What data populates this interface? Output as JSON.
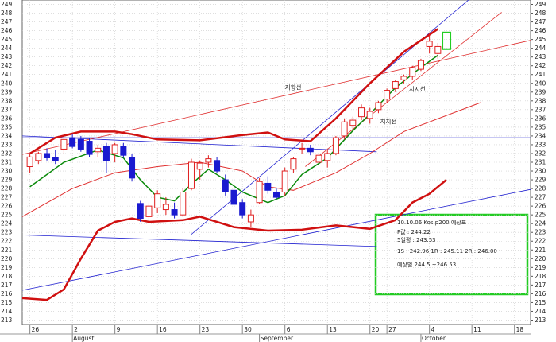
{
  "chart_data": {
    "type": "candlestick",
    "xlim": [
      -0.9,
      58.9
    ],
    "ylim": [
      212.5,
      249.5
    ],
    "yticks": [
      213,
      214,
      215,
      216,
      217,
      218,
      219,
      220,
      221,
      222,
      223,
      224,
      225,
      226,
      227,
      228,
      229,
      230,
      231,
      232,
      233,
      234,
      235,
      236,
      237,
      238,
      239,
      240,
      241,
      242,
      243,
      244,
      245,
      246,
      247,
      248,
      249
    ],
    "xticks": [
      {
        "value": 0,
        "label": "26"
      },
      {
        "value": 5,
        "label": "2"
      },
      {
        "value": 10,
        "label": "9"
      },
      {
        "value": 15,
        "label": "16"
      },
      {
        "value": 20,
        "label": "23"
      },
      {
        "value": 25,
        "label": "30"
      },
      {
        "value": 30,
        "label": "6"
      },
      {
        "value": 35,
        "label": "13"
      },
      {
        "value": 40,
        "label": "20"
      },
      {
        "value": 42,
        "label": "27"
      },
      {
        "value": 47,
        "label": "4"
      },
      {
        "value": 52,
        "label": "11"
      },
      {
        "value": 57,
        "label": "18"
      }
    ],
    "month_ticks": [
      {
        "value": 5,
        "label": "August"
      },
      {
        "value": 27,
        "label": "September"
      },
      {
        "value": 46,
        "label": "October"
      }
    ],
    "grid": true,
    "up_color": "#e02020",
    "down_color": "#1a1ad0",
    "candles": {
      "x": [
        0,
        1,
        2,
        3,
        4,
        5,
        6,
        7,
        8,
        9,
        10,
        11,
        12,
        13,
        14,
        15,
        16,
        17,
        18,
        19,
        20,
        21,
        22,
        23,
        24,
        25,
        26,
        27,
        28,
        29,
        30,
        31,
        32,
        33,
        34,
        35,
        36,
        37,
        38,
        39,
        40,
        41,
        42,
        43,
        44,
        45,
        46,
        47,
        48
      ],
      "open": [
        230.5,
        231.2,
        232.0,
        231.5,
        232.5,
        233.8,
        233.6,
        233.4,
        232.2,
        232.8,
        232.0,
        232.8,
        231.5,
        226.3,
        224.8,
        225.8,
        225.6,
        225.6,
        225.0,
        228.0,
        230.2,
        231.0,
        231.2,
        229.0,
        227.8,
        226.4,
        224.2,
        226.4,
        228.6,
        227.6,
        227.6,
        230.2,
        232.6,
        232.6,
        231.0,
        231.2,
        232.0,
        234.0,
        235.2,
        236.2,
        236.0,
        237.0,
        238.2,
        239.4,
        240.4,
        240.8,
        241.6,
        244.2,
        243.4
      ],
      "high": [
        232.0,
        232.2,
        232.6,
        232.4,
        234.0,
        234.2,
        234.0,
        233.8,
        233.0,
        233.2,
        233.2,
        233.2,
        232.0,
        226.6,
        226.4,
        227.8,
        227.0,
        226.4,
        228.0,
        231.4,
        231.2,
        231.8,
        231.6,
        229.6,
        228.2,
        226.8,
        225.6,
        229.2,
        229.4,
        228.0,
        230.4,
        231.6,
        233.2,
        233.0,
        232.2,
        232.4,
        234.0,
        236.0,
        236.2,
        237.6,
        237.2,
        238.0,
        239.4,
        240.4,
        241.0,
        242.0,
        242.8,
        245.8,
        244.6
      ],
      "low": [
        229.8,
        230.8,
        231.2,
        230.8,
        232.0,
        232.6,
        232.2,
        231.6,
        231.6,
        229.8,
        231.0,
        231.5,
        228.8,
        224.2,
        224.0,
        225.2,
        225.0,
        224.6,
        224.8,
        227.8,
        229.0,
        230.4,
        229.8,
        227.2,
        225.8,
        224.6,
        223.6,
        226.2,
        227.4,
        226.8,
        227.2,
        229.8,
        232.0,
        231.8,
        229.8,
        230.4,
        231.8,
        233.6,
        234.6,
        235.8,
        235.4,
        236.6,
        237.8,
        239.0,
        240.0,
        240.4,
        241.4,
        243.4,
        242.8
      ],
      "close": [
        231.6,
        232.0,
        231.5,
        231.2,
        233.6,
        232.8,
        232.5,
        231.9,
        232.6,
        231.2,
        233.0,
        231.8,
        229.2,
        224.6,
        226.0,
        227.4,
        226.2,
        225.0,
        227.6,
        231.0,
        230.9,
        231.4,
        230.0,
        227.6,
        226.2,
        225.0,
        225.0,
        228.8,
        227.8,
        227.0,
        230.0,
        231.4,
        232.6,
        232.2,
        231.8,
        232.0,
        233.8,
        235.6,
        235.8,
        237.2,
        236.8,
        237.8,
        239.2,
        240.2,
        240.8,
        241.8,
        242.6,
        244.8,
        244.2
      ]
    },
    "indicators": [
      {
        "color": "#d01010",
        "width": 2.5,
        "x": [
          0,
          3,
          6,
          10,
          12,
          15,
          20,
          25,
          28,
          30,
          33,
          36,
          40,
          44,
          48
        ],
        "values": [
          232.0,
          233.8,
          234.5,
          234.5,
          234.2,
          233.6,
          233.5,
          234.1,
          234.4,
          233.6,
          233.4,
          236.0,
          240.0,
          243.6,
          246.2
        ]
      },
      {
        "color": "#d01010",
        "width": 2.5,
        "x": [
          -0.9,
          2,
          4,
          6,
          8,
          10,
          12,
          14,
          18,
          20,
          24,
          28,
          32,
          36,
          40,
          43,
          45,
          47,
          49
        ],
        "values": [
          215.5,
          215.3,
          216.5,
          220.0,
          223.2,
          224.2,
          224.6,
          224.2,
          224.4,
          224.8,
          223.6,
          223.2,
          223.3,
          223.8,
          223.4,
          224.4,
          226.4,
          227.4,
          229.0
        ]
      },
      {
        "color": "#e03030",
        "width": 1,
        "x": [
          -0.9,
          5,
          10,
          15,
          20,
          25,
          28,
          31,
          36,
          40,
          44,
          53
        ],
        "values": [
          224.8,
          228.0,
          229.8,
          230.5,
          231.0,
          230.0,
          228.2,
          227.8,
          229.8,
          232.0,
          234.5,
          237.8
        ]
      },
      {
        "color": "#0a8a0a",
        "width": 1.5,
        "x": [
          0,
          4,
          8,
          11,
          13,
          15,
          17,
          19,
          21,
          23,
          25,
          28,
          30,
          32,
          35,
          38,
          40,
          43,
          46,
          48
        ],
        "values": [
          228.2,
          231.0,
          232.4,
          231.5,
          229.0,
          227.0,
          226.6,
          228.5,
          230.2,
          229.0,
          227.6,
          226.4,
          227.2,
          229.6,
          231.5,
          234.6,
          236.5,
          239.5,
          241.8,
          243.2
        ]
      }
    ],
    "trend_lines": [
      {
        "color": "#2020d0",
        "x": [
          -0.9,
          58.9
        ],
        "values": [
          233.8,
          233.8
        ]
      },
      {
        "color": "#2020d0",
        "x": [
          -0.9,
          40.8
        ],
        "values": [
          234.0,
          232.2
        ]
      },
      {
        "color": "#2020d0",
        "x": [
          -0.9,
          40.8
        ],
        "values": [
          222.7,
          221.4
        ]
      },
      {
        "color": "#2020d0",
        "x": [
          -0.9,
          58.9
        ],
        "values": [
          216.4,
          227.9
        ]
      },
      {
        "color": "#2020d0",
        "x": [
          18.9,
          51.6
        ],
        "values": [
          222.7,
          249.5
        ]
      },
      {
        "color": "#e03030",
        "x": [
          -0.9,
          58.9
        ],
        "values": [
          231.9,
          244.9
        ]
      },
      {
        "color": "#e03030",
        "x": [
          32.4,
          55.5
        ],
        "values": [
          230.5,
          248.1
        ]
      }
    ],
    "labels": [
      {
        "text": "저항선",
        "x": 30,
        "value": 239.3
      },
      {
        "text": "지지선",
        "x": 44.6,
        "value": 239.1
      },
      {
        "text": "지지선",
        "x": 41.2,
        "value": 235.4
      }
    ],
    "forecast": {
      "x": 49,
      "low": 243.9,
      "high": 245.8,
      "color": "#22cc22"
    },
    "annotation": {
      "lines": [
        "10.10.06 Kos p200 예상표",
        "P값 : 244.22",
        "5일평 : 243.53",
        "1S : 242.96   1R : 245.11  2R : 246.00",
        "예상범 244.5 ~246.53"
      ]
    }
  }
}
